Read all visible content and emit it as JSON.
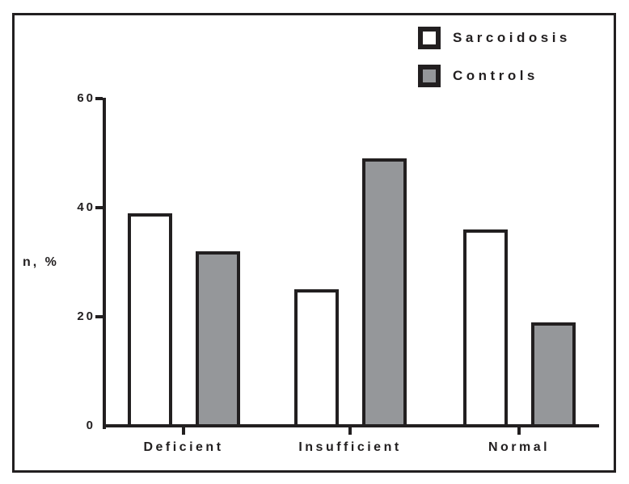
{
  "chart_data": {
    "type": "bar",
    "title": "",
    "categories": [
      "Deficient",
      "Insufficient",
      "Normal"
    ],
    "series": [
      {
        "name": "Sarcoidosis",
        "values": [
          39,
          25,
          36
        ],
        "fill": "#ffffff"
      },
      {
        "name": "Controls",
        "values": [
          32,
          49,
          19
        ],
        "fill": "#95979a"
      }
    ],
    "xlabel": "",
    "ylabel": "n, %",
    "yticks": [
      0,
      20,
      40,
      60
    ],
    "ylim": [
      0,
      60
    ],
    "grid": false,
    "legend_position": "top-right",
    "axis_color": "#221f20",
    "background_color": "#ffffff"
  }
}
